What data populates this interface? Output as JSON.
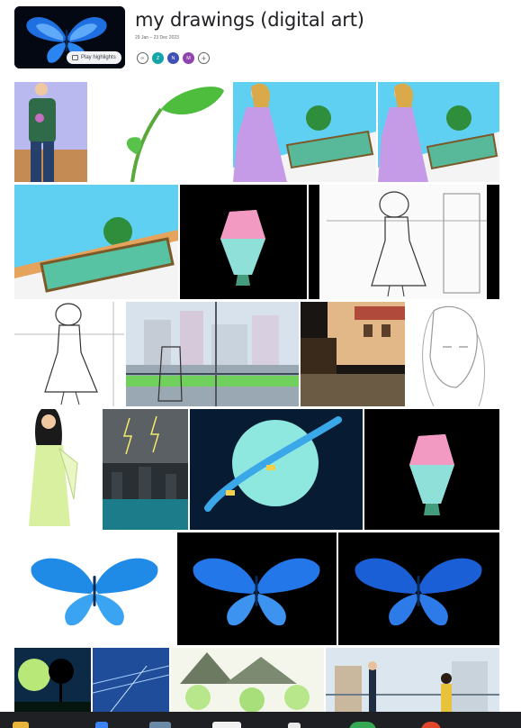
{
  "album": {
    "title": "my drawings (digital art)",
    "date_range": "29 Jan – 23 Dec 2023",
    "play_highlights_label": "Play highlights",
    "play_icon": "slideshow-icon"
  },
  "sharing": {
    "link_icon": "link-icon",
    "members": [
      {
        "initial": "Z",
        "color": "#12a4a8"
      },
      {
        "initial": "N",
        "color": "#3f51b5"
      },
      {
        "initial": "M",
        "color": "#8e44ad"
      }
    ],
    "add_icon": "add-person-icon",
    "add_symbol": "+"
  },
  "photos": [
    {
      "subject": "girl in green sweater"
    },
    {
      "subject": "green leaves vine"
    },
    {
      "subject": "girl in lavender dress at balcony"
    },
    {
      "subject": "girl in lavender dress at balcony signed"
    },
    {
      "subject": "balcony railing closeup"
    },
    {
      "subject": "glowing crystal"
    },
    {
      "subject": "sketch girl with hat at window"
    },
    {
      "subject": "sketch girl with hat"
    },
    {
      "subject": "city balcony scene"
    },
    {
      "subject": "old building courtyard"
    },
    {
      "subject": "sketch woman face"
    },
    {
      "subject": "woman in yellow dress"
    },
    {
      "subject": "stormy city bridge"
    },
    {
      "subject": "moon with orbiting ring"
    },
    {
      "subject": "glowing crystal dark"
    },
    {
      "subject": "blue butterfly on white"
    },
    {
      "subject": "blue butterfly on black"
    },
    {
      "subject": "blue butterfly on black dark"
    },
    {
      "subject": "tree under green moon"
    },
    {
      "subject": "night sky lines"
    },
    {
      "subject": "green landscape mountains"
    },
    {
      "subject": "couple on balcony"
    }
  ],
  "taskbar": {
    "apps": [
      "files-icon",
      "store-icon",
      "window-icon",
      "dashboard-icon",
      "media-icon",
      "chrome-icon",
      "app-icon"
    ]
  }
}
